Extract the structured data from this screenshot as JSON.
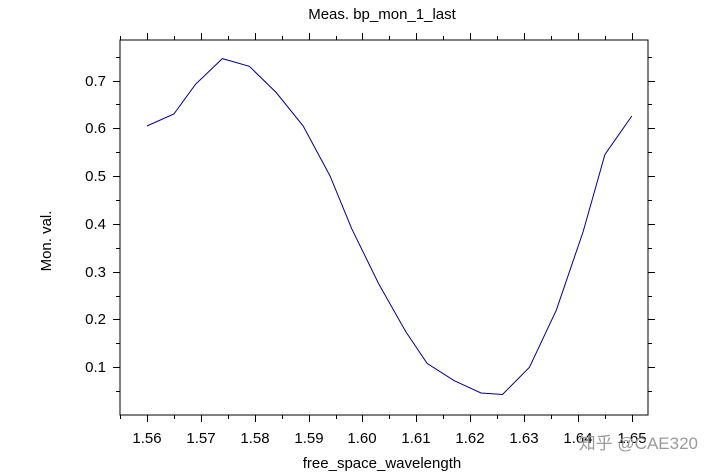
{
  "chart_data": {
    "type": "line",
    "title": "Meas. bp_mon_1_last",
    "xlabel": "free_space_wavelength",
    "ylabel": "Mon. val.",
    "xlim": [
      1.555,
      1.653
    ],
    "ylim": [
      0.0,
      0.785
    ],
    "xticks": [
      1.56,
      1.57,
      1.58,
      1.59,
      1.6,
      1.61,
      1.62,
      1.63,
      1.64,
      1.65
    ],
    "xtick_labels": [
      "1.56",
      "1.57",
      "1.58",
      "1.59",
      "1.60",
      "1.61",
      "1.62",
      "1.63",
      "1.64",
      "1.65"
    ],
    "yticks": [
      0.1,
      0.2,
      0.3,
      0.4,
      0.5,
      0.6,
      0.7
    ],
    "ytick_labels": [
      "0.1",
      "0.2",
      "0.3",
      "0.4",
      "0.5",
      "0.6",
      "0.7"
    ],
    "grid": false,
    "line_color": "#00008b",
    "series": [
      {
        "x": [
          1.56,
          1.565,
          1.569,
          1.574,
          1.579,
          1.584,
          1.589,
          1.594,
          1.598,
          1.603,
          1.608,
          1.612,
          1.617,
          1.622,
          1.626,
          1.631,
          1.636,
          1.641,
          1.645,
          1.65
        ],
        "y": [
          0.605,
          0.63,
          0.692,
          0.746,
          0.73,
          0.675,
          0.605,
          0.5,
          0.39,
          0.275,
          0.175,
          0.108,
          0.072,
          0.046,
          0.043,
          0.1,
          0.22,
          0.385,
          0.545,
          0.626
        ]
      }
    ]
  },
  "watermark": "知乎 @CAE320"
}
